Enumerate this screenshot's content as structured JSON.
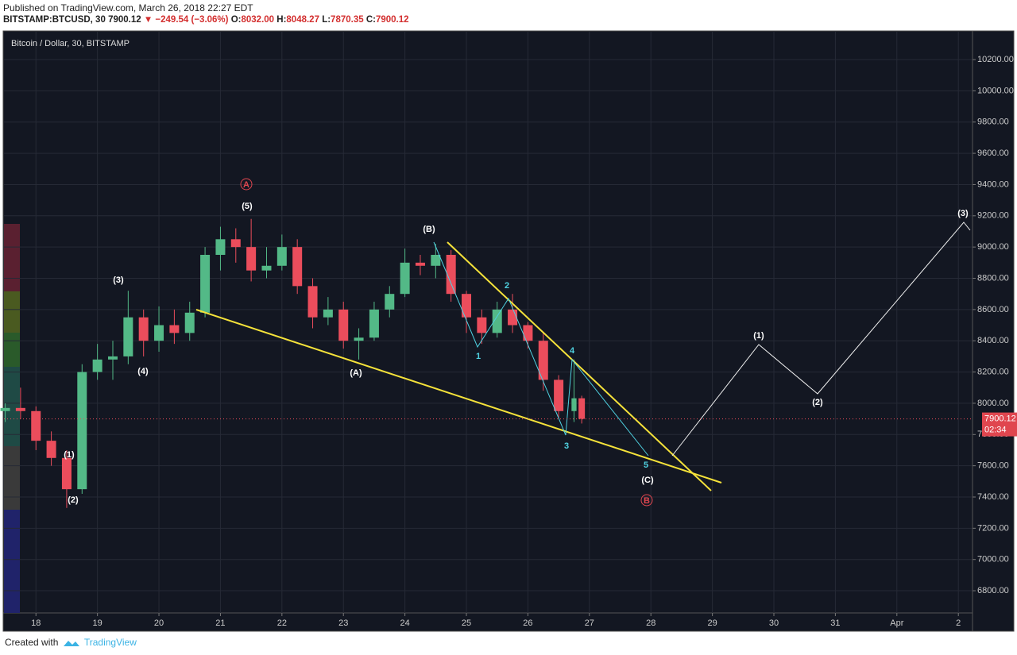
{
  "header": {
    "published": "Published on TradingView.com, March 26, 2018 22:27 EDT",
    "symbol": "BITSTAMP:BTCUSD, 30",
    "price": "7900.12",
    "change": "▼ −249.54 (−3.06%)",
    "ohlc": [
      {
        "key": "O:",
        "value": "8032.00"
      },
      {
        "key": "H:",
        "value": "8048.27"
      },
      {
        "key": "L:",
        "value": "7870.35"
      },
      {
        "key": "C:",
        "value": "7900.12"
      }
    ]
  },
  "footer": {
    "created": "Created with",
    "brand": "TradingView"
  },
  "chart_data": {
    "type": "candlestick",
    "title": "Bitcoin / Dollar, 30, BITSTAMP",
    "up_color": "#53b987",
    "down_color": "#eb4d5c",
    "grid": true,
    "x": [
      17.5,
      17.75,
      18,
      18.25,
      18.5,
      18.75,
      19,
      19.25,
      19.5,
      19.75,
      20,
      20.25,
      20.5,
      20.75,
      21,
      21.25,
      21.5,
      21.75,
      22,
      22.25,
      22.5,
      22.75,
      23,
      23.25,
      23.5,
      23.75,
      24,
      24.25,
      24.5,
      24.75,
      25,
      25.25,
      25.5,
      25.75,
      26,
      26.25,
      26.5,
      26.75,
      26.875
    ],
    "open": [
      7950,
      7970,
      7950,
      7760,
      7650,
      7450,
      8200,
      8280,
      8300,
      8550,
      8400,
      8500,
      8450,
      8580,
      8950,
      9050,
      9000,
      8850,
      8880,
      9000,
      8750,
      8550,
      8600,
      8400,
      8420,
      8600,
      8700,
      8900,
      8880,
      8950,
      8700,
      8550,
      8450,
      8600,
      8500,
      8400,
      8150,
      7950,
      8032
    ],
    "high": [
      8000,
      8100,
      7980,
      7820,
      7700,
      8250,
      8380,
      8400,
      8720,
      8600,
      8620,
      8600,
      8650,
      9000,
      9130,
      9120,
      9180,
      9000,
      9080,
      9050,
      8800,
      8680,
      8650,
      8480,
      8650,
      8750,
      8990,
      8950,
      9020,
      8980,
      8720,
      8600,
      8650,
      8700,
      8520,
      8450,
      8180,
      8280,
      8048.27
    ],
    "low": [
      7880,
      7900,
      7700,
      7600,
      7330,
      7420,
      8150,
      8150,
      8250,
      8300,
      8330,
      8380,
      8400,
      8550,
      8850,
      8900,
      8780,
      8800,
      8850,
      8700,
      8480,
      8500,
      8350,
      8280,
      8400,
      8550,
      8680,
      8820,
      8800,
      8650,
      8450,
      8380,
      8420,
      8450,
      8350,
      8080,
      7900,
      7880,
      7870.35
    ],
    "close": [
      7970,
      7950,
      7760,
      7650,
      7450,
      8200,
      8280,
      8300,
      8550,
      8400,
      8500,
      8450,
      8580,
      8950,
      9050,
      9000,
      8850,
      8880,
      9000,
      8750,
      8550,
      8600,
      8400,
      8420,
      8600,
      8700,
      8900,
      8880,
      8950,
      8700,
      8550,
      8450,
      8600,
      8500,
      8400,
      8150,
      7950,
      8032,
      7900.12
    ],
    "xlim": [
      17.48,
      33.23
    ],
    "xticks": [
      18,
      19,
      20,
      21,
      22,
      23,
      24,
      25,
      26,
      27,
      28,
      29,
      30,
      31,
      {
        "value": 32,
        "label": "Apr"
      },
      {
        "value": 33,
        "label": "2"
      }
    ],
    "ylim": [
      6658,
      10378
    ],
    "yticks": [
      {
        "value": 6800,
        "label": "6800.00"
      },
      {
        "value": 7000,
        "label": "7000.00"
      },
      {
        "value": 7200,
        "label": "7200.00"
      },
      {
        "value": 7400,
        "label": "7400.00"
      },
      {
        "value": 7600,
        "label": "7600.00"
      },
      {
        "value": 7800,
        "label": "7800.00"
      },
      {
        "value": 8000,
        "label": "8000.00"
      },
      {
        "value": 8200,
        "label": "8200.00"
      },
      {
        "value": 8400,
        "label": "8400.00"
      },
      {
        "value": 8600,
        "label": "8600.00"
      },
      {
        "value": 8800,
        "label": "8800.00"
      },
      {
        "value": 9000,
        "label": "9000.00"
      },
      {
        "value": 9200,
        "label": "9200.00"
      },
      {
        "value": 9400,
        "label": "9400.00"
      },
      {
        "value": 9600,
        "label": "9600.00"
      },
      {
        "value": 9800,
        "label": "9800.00"
      },
      {
        "value": 10000,
        "label": "10000.00"
      },
      {
        "value": 10200,
        "label": "10200.00"
      }
    ],
    "last_price": 7900.12,
    "last_price_label": "7900.12",
    "countdown": "02:34",
    "annotations": [
      "(5)",
      "(3)",
      "(4)",
      "(1)",
      "(2)",
      "(A)",
      "(B)",
      "2",
      "1",
      "4",
      "3",
      "5",
      "(C)",
      "A",
      "B",
      "(1)",
      "(2)",
      "(3)"
    ]
  }
}
